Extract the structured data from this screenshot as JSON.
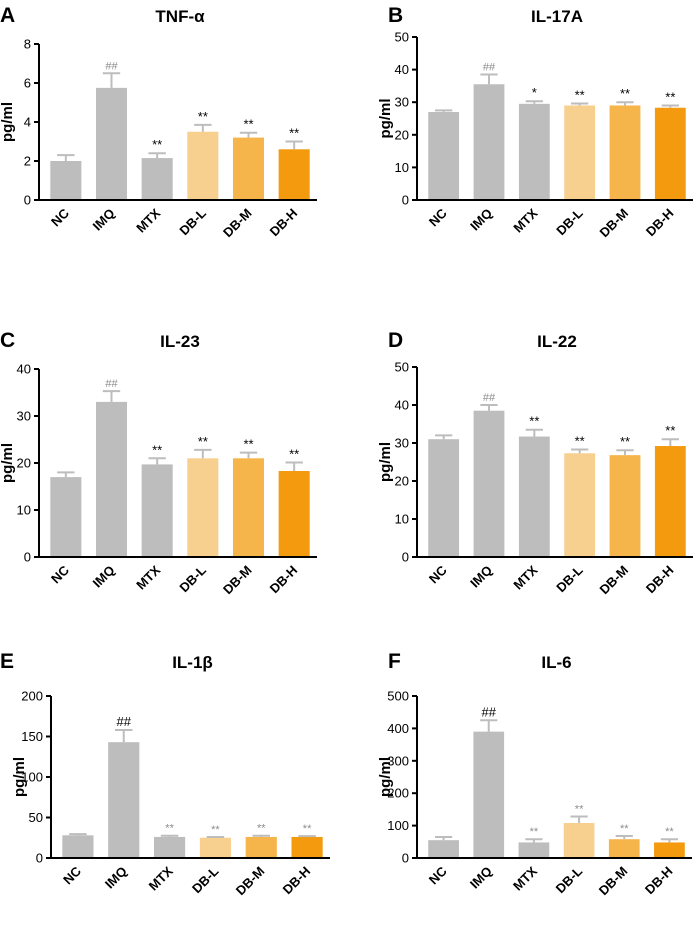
{
  "figure": {
    "categories": [
      "NC",
      "IMQ",
      "MTX",
      "DB-L",
      "DB-M",
      "DB-H"
    ],
    "bar_colors": [
      "#bdbdbd",
      "#bdbdbd",
      "#bdbdbd",
      "#f7cf8f",
      "#f6b54a",
      "#f39a0e"
    ],
    "error_color": "#bdbdbd",
    "ylabel": "pg/ml"
  },
  "chart_data": [
    {
      "panel": "A",
      "type": "bar",
      "title": "TNF-α",
      "ylabel": "pg/ml",
      "ylim": [
        0,
        8
      ],
      "yticks": [
        0,
        2,
        4,
        6,
        8
      ],
      "categories": [
        "NC",
        "IMQ",
        "MTX",
        "DB-L",
        "DB-M",
        "DB-H"
      ],
      "values": [
        2.0,
        5.75,
        2.15,
        3.5,
        3.2,
        2.6
      ],
      "errors": [
        0.3,
        0.75,
        0.25,
        0.35,
        0.25,
        0.4
      ],
      "annotations": [
        "",
        "##",
        "**",
        "**",
        "**",
        "**"
      ],
      "annotation_style": "dark"
    },
    {
      "panel": "B",
      "type": "bar",
      "title": "IL-17A",
      "ylabel": "pg/ml",
      "ylim": [
        0,
        50
      ],
      "yticks": [
        0,
        10,
        20,
        30,
        40,
        50
      ],
      "categories": [
        "NC",
        "IMQ",
        "MTX",
        "DB-L",
        "DB-M",
        "DB-H"
      ],
      "values": [
        27,
        35.5,
        29.5,
        29,
        29,
        28.3
      ],
      "errors": [
        0.5,
        3,
        0.8,
        0.6,
        1.0,
        0.7
      ],
      "annotations": [
        "",
        "##",
        "*",
        "**",
        "**",
        "**"
      ],
      "annotation_style": "dark"
    },
    {
      "panel": "C",
      "type": "bar",
      "title": "IL-23",
      "ylabel": "pg/ml",
      "ylim": [
        0,
        40
      ],
      "yticks": [
        0,
        10,
        20,
        30,
        40
      ],
      "categories": [
        "NC",
        "IMQ",
        "MTX",
        "DB-L",
        "DB-M",
        "DB-H"
      ],
      "values": [
        17,
        33,
        19.7,
        21,
        21,
        18.3
      ],
      "errors": [
        1.0,
        2.3,
        1.3,
        1.8,
        1.2,
        1.8
      ],
      "annotations": [
        "",
        "##",
        "**",
        "**",
        "**",
        "**"
      ],
      "annotation_style": "dark"
    },
    {
      "panel": "D",
      "type": "bar",
      "title": "IL-22",
      "ylabel": "pg/ml",
      "ylim": [
        0,
        50
      ],
      "yticks": [
        0,
        10,
        20,
        30,
        40,
        50
      ],
      "categories": [
        "NC",
        "IMQ",
        "MTX",
        "DB-L",
        "DB-M",
        "DB-H"
      ],
      "values": [
        31,
        38.5,
        31.7,
        27.3,
        26.8,
        29.2
      ],
      "errors": [
        1.0,
        1.5,
        1.8,
        1.0,
        1.3,
        1.8
      ],
      "annotations": [
        "",
        "##",
        "**",
        "**",
        "**",
        "**"
      ],
      "annotation_style": "dark"
    },
    {
      "panel": "E",
      "type": "bar",
      "title": "IL-1β",
      "ylabel": "pg/ml",
      "ylim": [
        0,
        200
      ],
      "yticks": [
        0,
        50,
        100,
        150,
        200
      ],
      "categories": [
        "NC",
        "IMQ",
        "MTX",
        "DB-L",
        "DB-M",
        "DB-H"
      ],
      "values": [
        28,
        143,
        26,
        25,
        26,
        26
      ],
      "errors": [
        1.5,
        15,
        1.5,
        1.0,
        1.5,
        1.0
      ],
      "annotations": [
        "",
        "##",
        "**",
        "**",
        "**",
        "**"
      ],
      "annotation_style": "light"
    },
    {
      "panel": "F",
      "type": "bar",
      "title": "IL-6",
      "ylabel": "pg/ml",
      "ylim": [
        0,
        500
      ],
      "yticks": [
        0,
        100,
        200,
        300,
        400,
        500
      ],
      "categories": [
        "NC",
        "IMQ",
        "MTX",
        "DB-L",
        "DB-M",
        "DB-H"
      ],
      "values": [
        55,
        390,
        48,
        108,
        58,
        48
      ],
      "errors": [
        10,
        35,
        10,
        20,
        10,
        10
      ],
      "annotations": [
        "",
        "##",
        "**",
        "**",
        "**",
        "**"
      ],
      "annotation_style": "light"
    }
  ]
}
